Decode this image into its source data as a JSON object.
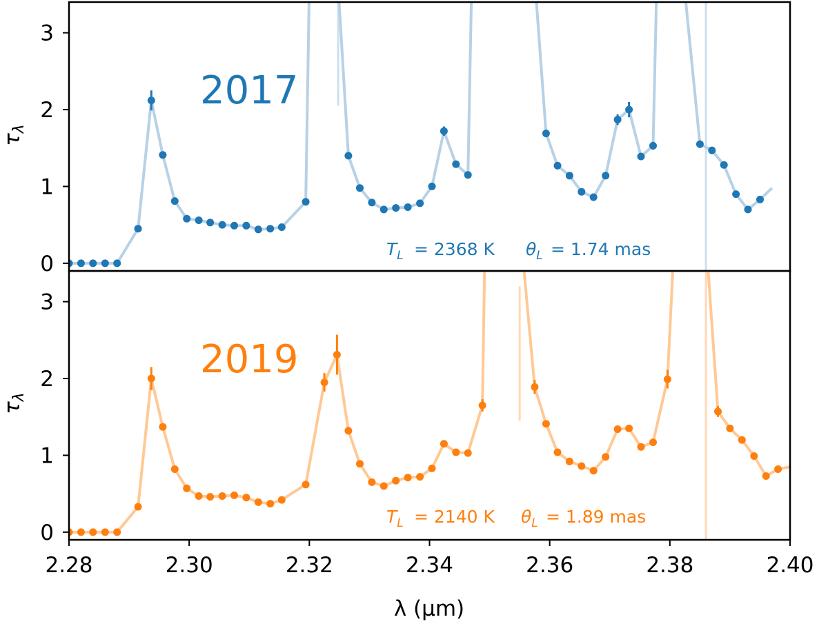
{
  "chart_data": {
    "type": "line",
    "xlabel": "λ (μm)",
    "xlim": [
      2.28,
      2.4
    ],
    "xticks": [
      "2.28",
      "2.30",
      "2.32",
      "2.34",
      "2.36",
      "2.38",
      "2.40"
    ],
    "panels": [
      {
        "name": "2017",
        "title": "2017",
        "ylabel": "τλ",
        "ylim": [
          -0.1,
          3.4
        ],
        "yticks": [
          "0",
          "1",
          "2",
          "3"
        ],
        "color": "#1f77b4",
        "line_color": "#b7d1e6",
        "annotation": {
          "T_L": "2368 K",
          "theta_L": "1.74 mas"
        },
        "segments": [
          [
            [
              2.28,
              0.0
            ],
            [
              2.282,
              0.0
            ],
            [
              2.284,
              0.0
            ],
            [
              2.286,
              0.0
            ],
            [
              2.288,
              0.0
            ],
            [
              2.2915,
              0.45
            ],
            [
              2.2937,
              2.12
            ],
            [
              2.2956,
              1.41
            ],
            [
              2.2976,
              0.81
            ],
            [
              2.2996,
              0.58
            ],
            [
              2.3016,
              0.56
            ],
            [
              2.3035,
              0.53
            ],
            [
              2.3055,
              0.5
            ],
            [
              2.3075,
              0.49
            ],
            [
              2.3095,
              0.49
            ],
            [
              2.3115,
              0.44
            ],
            [
              2.3135,
              0.45
            ],
            [
              2.3154,
              0.47
            ],
            [
              2.3194,
              0.8
            ],
            [
              2.32,
              3.6
            ]
          ],
          [
            [
              2.3248,
              3.6
            ],
            [
              2.3265,
              1.4
            ],
            [
              2.3284,
              0.98
            ],
            [
              2.3304,
              0.79
            ],
            [
              2.3324,
              0.7
            ],
            [
              2.3344,
              0.72
            ],
            [
              2.3364,
              0.73
            ],
            [
              2.3384,
              0.78
            ],
            [
              2.3404,
              1.0
            ],
            [
              2.3424,
              1.72
            ],
            [
              2.3444,
              1.29
            ],
            [
              2.3464,
              1.15
            ],
            [
              2.347,
              3.6
            ]
          ],
          [
            [
              2.3576,
              3.6
            ],
            [
              2.3594,
              1.69
            ],
            [
              2.3613,
              1.27
            ],
            [
              2.3633,
              1.14
            ],
            [
              2.3653,
              0.93
            ],
            [
              2.3673,
              0.86
            ],
            [
              2.3693,
              1.14
            ],
            [
              2.3713,
              1.87
            ],
            [
              2.3732,
              2.0
            ],
            [
              2.3752,
              1.39
            ],
            [
              2.3772,
              1.53
            ],
            [
              2.3778,
              3.6
            ]
          ],
          [
            [
              2.3824,
              3.6
            ],
            [
              2.385,
              1.55
            ],
            [
              2.387,
              1.47
            ],
            [
              2.389,
              1.28
            ],
            [
              2.391,
              0.9
            ],
            [
              2.393,
              0.7
            ],
            [
              2.395,
              0.83
            ],
            [
              2.397,
              0.98
            ]
          ]
        ],
        "points": [
          [
            2.28,
            0.0
          ],
          [
            2.282,
            0.0
          ],
          [
            2.284,
            0.0
          ],
          [
            2.286,
            0.0
          ],
          [
            2.288,
            0.0
          ],
          [
            2.2915,
            0.45
          ],
          [
            2.2937,
            2.12
          ],
          [
            2.2956,
            1.41
          ],
          [
            2.2976,
            0.81
          ],
          [
            2.2996,
            0.58
          ],
          [
            2.3016,
            0.56
          ],
          [
            2.3035,
            0.53
          ],
          [
            2.3055,
            0.5
          ],
          [
            2.3075,
            0.49
          ],
          [
            2.3095,
            0.49
          ],
          [
            2.3115,
            0.44
          ],
          [
            2.3135,
            0.45
          ],
          [
            2.3154,
            0.47
          ],
          [
            2.3194,
            0.8
          ],
          [
            2.3265,
            1.4
          ],
          [
            2.3284,
            0.98
          ],
          [
            2.3304,
            0.79
          ],
          [
            2.3324,
            0.7
          ],
          [
            2.3344,
            0.72
          ],
          [
            2.3364,
            0.73
          ],
          [
            2.3384,
            0.78
          ],
          [
            2.3404,
            1.0
          ],
          [
            2.3424,
            1.72
          ],
          [
            2.3444,
            1.29
          ],
          [
            2.3464,
            1.15
          ],
          [
            2.3594,
            1.69
          ],
          [
            2.3613,
            1.27
          ],
          [
            2.3633,
            1.14
          ],
          [
            2.3653,
            0.93
          ],
          [
            2.3673,
            0.86
          ],
          [
            2.3693,
            1.14
          ],
          [
            2.3713,
            1.87
          ],
          [
            2.3732,
            2.0
          ],
          [
            2.3752,
            1.39
          ],
          [
            2.3772,
            1.53
          ],
          [
            2.385,
            1.55
          ],
          [
            2.387,
            1.47
          ],
          [
            2.389,
            1.28
          ],
          [
            2.391,
            0.9
          ],
          [
            2.393,
            0.7
          ],
          [
            2.395,
            0.83
          ]
        ],
        "errorbars": [
          [
            2.2937,
            2.12,
            0.13
          ],
          [
            2.3424,
            1.72,
            0.06
          ],
          [
            2.3713,
            1.87,
            0.07
          ],
          [
            2.3732,
            2.0,
            0.1
          ],
          [
            2.3594,
            1.69,
            0.05
          ],
          [
            2.3772,
            1.53,
            0.05
          ]
        ],
        "faint_lines": [
          [
            2.3248,
            2.05,
            3.4
          ],
          [
            2.386,
            -0.1,
            3.4
          ]
        ]
      },
      {
        "name": "2019",
        "title": "2019",
        "ylabel": "τλ",
        "ylim": [
          -0.1,
          3.4
        ],
        "yticks": [
          "0",
          "1",
          "2",
          "3"
        ],
        "color": "#ff7f0e",
        "line_color": "#ffc996",
        "annotation": {
          "T_L": "2140 K",
          "theta_L": "1.89 mas"
        },
        "segments": [
          [
            [
              2.28,
              0.0
            ],
            [
              2.282,
              0.0
            ],
            [
              2.284,
              0.0
            ],
            [
              2.286,
              0.0
            ],
            [
              2.288,
              0.0
            ],
            [
              2.2915,
              0.33
            ],
            [
              2.2937,
              2.0
            ],
            [
              2.2956,
              1.37
            ],
            [
              2.2976,
              0.82
            ],
            [
              2.2996,
              0.57
            ],
            [
              2.3016,
              0.47
            ],
            [
              2.3035,
              0.46
            ],
            [
              2.3055,
              0.47
            ],
            [
              2.3075,
              0.48
            ],
            [
              2.3095,
              0.45
            ],
            [
              2.3115,
              0.39
            ],
            [
              2.3135,
              0.37
            ],
            [
              2.3154,
              0.42
            ],
            [
              2.3194,
              0.62
            ],
            [
              2.3225,
              1.95
            ],
            [
              2.3246,
              2.31
            ],
            [
              2.3265,
              1.32
            ],
            [
              2.3284,
              0.89
            ],
            [
              2.3304,
              0.65
            ],
            [
              2.3324,
              0.6
            ],
            [
              2.3344,
              0.67
            ],
            [
              2.3364,
              0.71
            ],
            [
              2.3384,
              0.72
            ],
            [
              2.3404,
              0.83
            ],
            [
              2.3424,
              1.15
            ],
            [
              2.3444,
              1.04
            ],
            [
              2.3464,
              1.03
            ],
            [
              2.3488,
              1.65
            ],
            [
              2.3492,
              3.6
            ]
          ],
          [
            [
              2.3555,
              3.6
            ],
            [
              2.3575,
              1.89
            ],
            [
              2.3594,
              1.41
            ],
            [
              2.3613,
              1.04
            ],
            [
              2.3633,
              0.92
            ],
            [
              2.3653,
              0.86
            ],
            [
              2.3673,
              0.8
            ],
            [
              2.3693,
              0.98
            ],
            [
              2.3713,
              1.34
            ],
            [
              2.3732,
              1.35
            ],
            [
              2.3752,
              1.11
            ],
            [
              2.3772,
              1.17
            ],
            [
              2.3796,
              1.99
            ],
            [
              2.3806,
              3.6
            ]
          ],
          [
            [
              2.3862,
              3.6
            ],
            [
              2.388,
              1.57
            ],
            [
              2.39,
              1.35
            ],
            [
              2.392,
              1.2
            ],
            [
              2.394,
              0.99
            ],
            [
              2.396,
              0.73
            ],
            [
              2.398,
              0.82
            ],
            [
              2.4,
              0.85
            ]
          ]
        ],
        "points": [
          [
            2.28,
            0.0
          ],
          [
            2.282,
            0.0
          ],
          [
            2.284,
            0.0
          ],
          [
            2.286,
            0.0
          ],
          [
            2.288,
            0.0
          ],
          [
            2.2915,
            0.33
          ],
          [
            2.2937,
            2.0
          ],
          [
            2.2956,
            1.37
          ],
          [
            2.2976,
            0.82
          ],
          [
            2.2996,
            0.57
          ],
          [
            2.3016,
            0.47
          ],
          [
            2.3035,
            0.46
          ],
          [
            2.3055,
            0.47
          ],
          [
            2.3075,
            0.48
          ],
          [
            2.3095,
            0.45
          ],
          [
            2.3115,
            0.39
          ],
          [
            2.3135,
            0.37
          ],
          [
            2.3154,
            0.42
          ],
          [
            2.3194,
            0.62
          ],
          [
            2.3225,
            1.95
          ],
          [
            2.3246,
            2.31
          ],
          [
            2.3265,
            1.32
          ],
          [
            2.3284,
            0.89
          ],
          [
            2.3304,
            0.65
          ],
          [
            2.3324,
            0.6
          ],
          [
            2.3344,
            0.67
          ],
          [
            2.3364,
            0.71
          ],
          [
            2.3384,
            0.72
          ],
          [
            2.3404,
            0.83
          ],
          [
            2.3424,
            1.15
          ],
          [
            2.3444,
            1.04
          ],
          [
            2.3464,
            1.03
          ],
          [
            2.3488,
            1.65
          ],
          [
            2.3575,
            1.89
          ],
          [
            2.3594,
            1.41
          ],
          [
            2.3613,
            1.04
          ],
          [
            2.3633,
            0.92
          ],
          [
            2.3653,
            0.86
          ],
          [
            2.3673,
            0.8
          ],
          [
            2.3693,
            0.98
          ],
          [
            2.3713,
            1.34
          ],
          [
            2.3732,
            1.35
          ],
          [
            2.3752,
            1.11
          ],
          [
            2.3772,
            1.17
          ],
          [
            2.3796,
            1.99
          ],
          [
            2.388,
            1.57
          ],
          [
            2.39,
            1.35
          ],
          [
            2.392,
            1.2
          ],
          [
            2.394,
            0.99
          ],
          [
            2.396,
            0.73
          ],
          [
            2.398,
            0.82
          ]
        ],
        "errorbars": [
          [
            2.2937,
            2.0,
            0.15
          ],
          [
            2.3225,
            1.95,
            0.12
          ],
          [
            2.3246,
            2.31,
            0.26
          ],
          [
            2.3488,
            1.65,
            0.08
          ],
          [
            2.3575,
            1.89,
            0.09
          ],
          [
            2.3796,
            1.99,
            0.12
          ],
          [
            2.388,
            1.57,
            0.07
          ]
        ],
        "faint_lines": [
          [
            2.355,
            1.45,
            3.2
          ],
          [
            2.386,
            -0.1,
            3.4
          ]
        ]
      }
    ]
  }
}
